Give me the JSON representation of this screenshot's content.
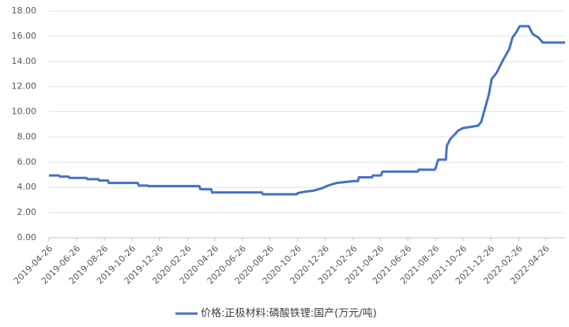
{
  "chart_data": {
    "type": "line",
    "x": [
      "2019-04-26",
      "2019-05-18",
      "2019-05-20",
      "2019-06-08",
      "2019-06-10",
      "2019-07-18",
      "2019-07-20",
      "2019-08-13",
      "2019-08-15",
      "2019-09-03",
      "2019-09-05",
      "2019-11-08",
      "2019-11-10",
      "2019-11-30",
      "2019-12-01",
      "2020-03-23",
      "2020-03-25",
      "2020-04-18",
      "2020-04-20",
      "2020-08-08",
      "2020-08-10",
      "2020-10-24",
      "2020-10-26",
      "2020-11-10",
      "2020-12-01",
      "2020-12-20",
      "2021-01-01",
      "2021-01-20",
      "2021-02-26",
      "2021-03-08",
      "2021-03-10",
      "2021-04-08",
      "2021-04-10",
      "2021-04-28",
      "2021-05-01",
      "2021-07-18",
      "2021-07-20",
      "2021-08-24",
      "2021-08-26",
      "2021-09-01",
      "2021-09-18",
      "2021-09-20",
      "2021-09-28",
      "2021-10-15",
      "2021-10-25",
      "2021-11-28",
      "2021-12-05",
      "2021-12-12",
      "2021-12-22",
      "2021-12-28",
      "2022-01-08",
      "2022-01-22",
      "2022-02-05",
      "2022-02-12",
      "2022-02-20",
      "2022-02-28",
      "2022-03-20",
      "2022-03-28",
      "2022-04-10",
      "2022-04-20",
      "2022-06-08"
    ],
    "series": [
      {
        "name": "价格:正极材料:磷酸铁锂:国产(万元/吨)",
        "color": "#4472c4",
        "values": [
          4.95,
          4.95,
          4.85,
          4.85,
          4.75,
          4.75,
          4.65,
          4.65,
          4.55,
          4.55,
          4.35,
          4.35,
          4.15,
          4.15,
          4.1,
          4.1,
          3.85,
          3.85,
          3.6,
          3.6,
          3.45,
          3.45,
          3.55,
          3.65,
          3.75,
          3.95,
          4.15,
          4.35,
          4.5,
          4.5,
          4.8,
          4.8,
          4.95,
          4.95,
          5.25,
          5.25,
          5.4,
          5.4,
          5.5,
          6.2,
          6.2,
          7.3,
          7.85,
          8.5,
          8.7,
          8.9,
          9.2,
          10.1,
          11.4,
          12.6,
          13.1,
          14.1,
          15.0,
          15.9,
          16.3,
          16.8,
          16.8,
          16.2,
          15.9,
          15.5,
          15.5
        ]
      }
    ],
    "xlim": [
      "2019-04-26",
      "2022-06-08"
    ],
    "xticks": [
      "2019-04-26",
      "2019-06-26",
      "2019-08-26",
      "2019-10-26",
      "2019-12-26",
      "2020-02-26",
      "2020-04-26",
      "2020-06-26",
      "2020-08-26",
      "2020-10-26",
      "2020-12-26",
      "2021-02-26",
      "2021-04-26",
      "2021-06-26",
      "2021-08-26",
      "2021-10-26",
      "2021-12-26",
      "2022-02-26",
      "2022-04-26"
    ],
    "ylim": [
      0,
      18
    ],
    "yticks": [
      {
        "value": 0,
        "label": "0.00"
      },
      {
        "value": 2,
        "label": "2.00"
      },
      {
        "value": 4,
        "label": "4.00"
      },
      {
        "value": 6,
        "label": "6.00"
      },
      {
        "value": 8,
        "label": "8.00"
      },
      {
        "value": 10,
        "label": "10.00"
      },
      {
        "value": 12,
        "label": "12.00"
      },
      {
        "value": 14,
        "label": "14.00"
      },
      {
        "value": 16,
        "label": "16.00"
      },
      {
        "value": 18,
        "label": "18.00"
      }
    ],
    "grid": true,
    "legend": "bottom"
  }
}
